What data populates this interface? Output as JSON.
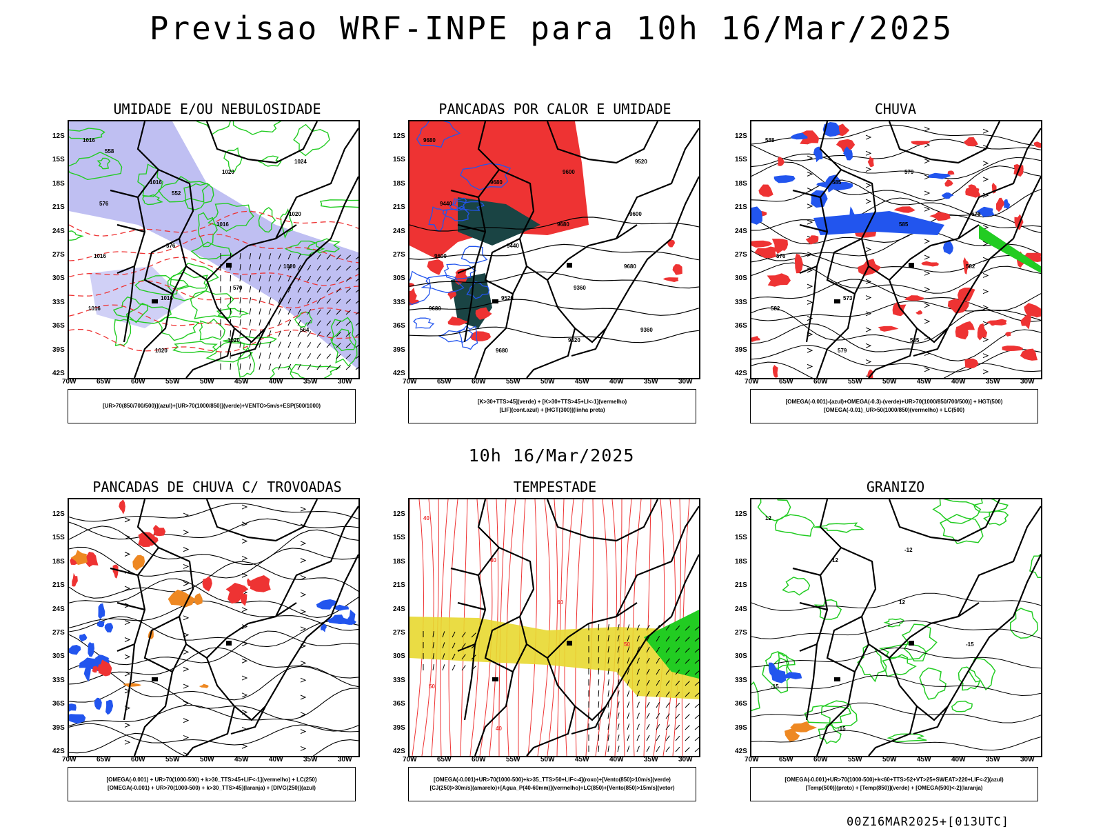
{
  "page": {
    "main_title": "Previsao WRF-INPE  para 10h 16/Mar/2025",
    "mid_title": "10h 16/Mar/2025",
    "footer": "00Z16MAR2025+[013UTC]"
  },
  "axes": {
    "lat_labels": [
      "12S",
      "15S",
      "18S",
      "21S",
      "24S",
      "27S",
      "30S",
      "33S",
      "36S",
      "39S",
      "42S"
    ],
    "lon_labels": [
      "70W",
      "65W",
      "60W",
      "55W",
      "50W",
      "45W",
      "40W",
      "35W",
      "30W"
    ]
  },
  "colors": {
    "red": "#ee3333",
    "blue": "#2255ee",
    "green": "#22cc22",
    "lavender": "#aaaaee",
    "darkteal": "#1a4444",
    "yellow": "#e8d830",
    "orange": "#ee8822",
    "purple": "#aa22cc",
    "black": "#000000"
  },
  "panels": [
    {
      "id": "umidade",
      "title": "UMIDADE E/OU NEBULOSIDADE",
      "legend": [
        "[UR>70(850/700/500)](azul)+[UR>70(1000/850)](verde)+VENTO>5m/s+ESP(500/1000)"
      ],
      "contour_labels": [
        "1016",
        "1016",
        "1016",
        "1020",
        "1016",
        "1020",
        "1020",
        "1020",
        "1016",
        "1016",
        "1020",
        "1024",
        "576",
        "576",
        "570",
        "564",
        "558",
        "552"
      ]
    },
    {
      "id": "pancadas_calor",
      "title": "PANCADAS POR CALOR E UMIDADE",
      "legend": [
        "[K>30+TTS>45](verde) + [K>30+TTS>45+LI<-1](vermelho)",
        "[LIF](cont.azul) + [HGT(300)](linha preta)"
      ],
      "contour_labels": [
        "9680",
        "9680",
        "9680",
        "9680",
        "9680",
        "9680",
        "9600",
        "9600",
        "9600",
        "9520",
        "9520",
        "9520",
        "9440",
        "9440",
        "9360",
        "9360"
      ]
    },
    {
      "id": "chuva",
      "title": "CHUVA",
      "legend": [
        "[OMEGA(-0.001)-(azul)+OMEGA(-0.3)-(verde)+UR>70(1000/850/700/500)] + HGT(500)",
        "[OMEGA(-0.01)_UR>50(1000/850)(vermelho) + LC(500)"
      ],
      "contour_labels": [
        "588",
        "585",
        "585",
        "582",
        "582",
        "579",
        "579",
        "576",
        "576",
        "573",
        "585"
      ]
    },
    {
      "id": "trovoadas",
      "title": "PANCADAS DE CHUVA C/ TROVOADAS",
      "legend": [
        "[OMEGA(-0.001) + UR>70(1000-500) + k>30_TTS>45+LIF<-1](vermelho) + LC(250)",
        "[OMEGA(-0.001) + UR>70(1000-500) + k>30_TTS>45](laranja) + [DIVG(250)](azul)"
      ],
      "contour_labels": []
    },
    {
      "id": "tempestade",
      "title": "TEMPESTADE",
      "legend": [
        "[OMEGA(-0.001)+UR>70(1000-500)+k>35_TTS>50+LIF<-4](roxo)+[Vento(850)>10m/s](verde)",
        "[CJ(250)>30m/s](amarelo)+[Agua_P(40-60mm)](vermelho)+LC(850)+[Vento(850)>15m/s](vetor)"
      ],
      "contour_labels": [
        "40",
        "40",
        "40",
        "50",
        "50",
        "40"
      ]
    },
    {
      "id": "granizo",
      "title": "GRANIZO",
      "legend": [
        "[OMEGA(-0.001)+UR>70(1000-500)+k<60+TTS>52+VT>25+SWEAT>220+LIF<-2](azul)",
        "[Temp(500)](preto) + [Temp(850)](verde) + [OMEGA(500)<-2](laranja)"
      ],
      "contour_labels": [
        "12",
        "12",
        "12",
        "-15",
        "-15",
        "-15",
        "-12"
      ]
    }
  ]
}
